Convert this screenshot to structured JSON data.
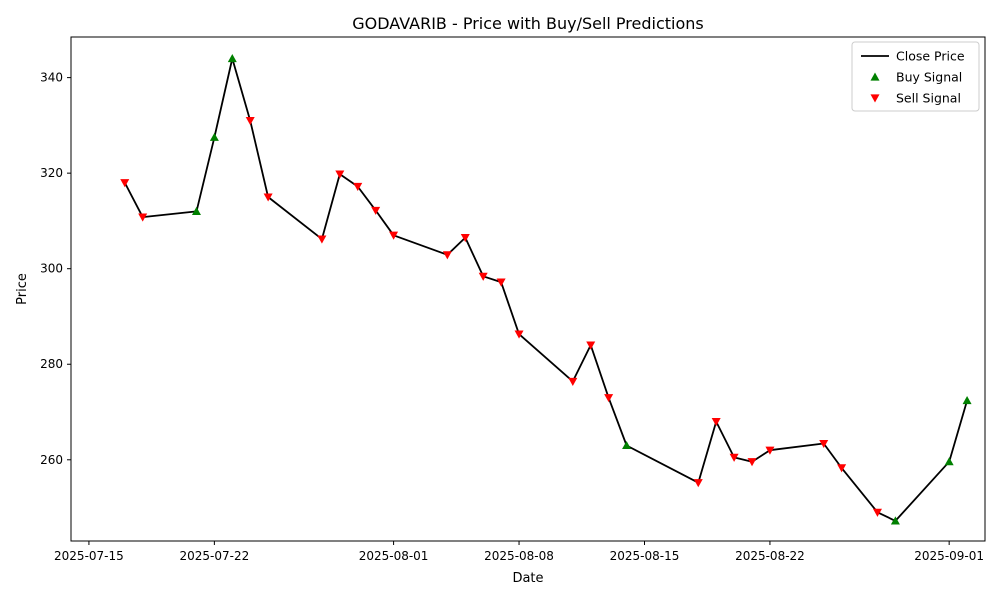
{
  "chart_data": {
    "type": "line",
    "title": "GODAVARIB - Price with Buy/Sell Predictions",
    "xlabel": "Date",
    "ylabel": "Price",
    "x_ticks": [
      "2025-07-15",
      "2025-07-22",
      "2025-08-01",
      "2025-08-08",
      "2025-08-15",
      "2025-08-22",
      "2025-09-01"
    ],
    "y_ticks": [
      260,
      280,
      300,
      320,
      340
    ],
    "xlim": [
      "2025-07-14",
      "2025-09-03"
    ],
    "ylim": [
      243,
      348.5
    ],
    "grid": false,
    "legend_position": "top-right",
    "series": [
      {
        "name": "Close Price",
        "kind": "line",
        "color": "#000000",
        "points": [
          {
            "x": "2025-07-17",
            "y": 318.0
          },
          {
            "x": "2025-07-18",
            "y": 310.8
          },
          {
            "x": "2025-07-21",
            "y": 312.0
          },
          {
            "x": "2025-07-22",
            "y": 327.5
          },
          {
            "x": "2025-07-23",
            "y": 344.0
          },
          {
            "x": "2025-07-24",
            "y": 331.0
          },
          {
            "x": "2025-07-25",
            "y": 315.0
          },
          {
            "x": "2025-07-28",
            "y": 306.2
          },
          {
            "x": "2025-07-29",
            "y": 319.8
          },
          {
            "x": "2025-07-30",
            "y": 317.2
          },
          {
            "x": "2025-07-31",
            "y": 312.2
          },
          {
            "x": "2025-08-01",
            "y": 307.0
          },
          {
            "x": "2025-08-04",
            "y": 302.9
          },
          {
            "x": "2025-08-05",
            "y": 306.5
          },
          {
            "x": "2025-08-06",
            "y": 298.4
          },
          {
            "x": "2025-08-07",
            "y": 297.2
          },
          {
            "x": "2025-08-08",
            "y": 286.3
          },
          {
            "x": "2025-08-11",
            "y": 276.4
          },
          {
            "x": "2025-08-12",
            "y": 284.0
          },
          {
            "x": "2025-08-13",
            "y": 273.0
          },
          {
            "x": "2025-08-14",
            "y": 263.0
          },
          {
            "x": "2025-08-18",
            "y": 255.2
          },
          {
            "x": "2025-08-19",
            "y": 268.0
          },
          {
            "x": "2025-08-20",
            "y": 260.5
          },
          {
            "x": "2025-08-21",
            "y": 259.6
          },
          {
            "x": "2025-08-22",
            "y": 262.0
          },
          {
            "x": "2025-08-25",
            "y": 263.4
          },
          {
            "x": "2025-08-26",
            "y": 258.3
          },
          {
            "x": "2025-08-28",
            "y": 249.0
          },
          {
            "x": "2025-08-29",
            "y": 247.2
          },
          {
            "x": "2025-09-01",
            "y": 259.6
          },
          {
            "x": "2025-09-02",
            "y": 272.4
          }
        ]
      },
      {
        "name": "Buy Signal",
        "kind": "marker-up",
        "color": "#008000",
        "points": [
          {
            "x": "2025-07-21",
            "y": 312.0
          },
          {
            "x": "2025-07-22",
            "y": 327.5
          },
          {
            "x": "2025-07-23",
            "y": 344.0
          },
          {
            "x": "2025-08-14",
            "y": 263.0
          },
          {
            "x": "2025-08-29",
            "y": 247.2
          },
          {
            "x": "2025-09-01",
            "y": 259.6
          },
          {
            "x": "2025-09-02",
            "y": 272.4
          }
        ]
      },
      {
        "name": "Sell Signal",
        "kind": "marker-down",
        "color": "#ff0000",
        "points": [
          {
            "x": "2025-07-17",
            "y": 318.0
          },
          {
            "x": "2025-07-18",
            "y": 310.8
          },
          {
            "x": "2025-07-24",
            "y": 331.0
          },
          {
            "x": "2025-07-25",
            "y": 315.0
          },
          {
            "x": "2025-07-28",
            "y": 306.2
          },
          {
            "x": "2025-07-29",
            "y": 319.8
          },
          {
            "x": "2025-07-30",
            "y": 317.2
          },
          {
            "x": "2025-07-31",
            "y": 312.2
          },
          {
            "x": "2025-08-01",
            "y": 307.0
          },
          {
            "x": "2025-08-04",
            "y": 302.9
          },
          {
            "x": "2025-08-05",
            "y": 306.5
          },
          {
            "x": "2025-08-06",
            "y": 298.4
          },
          {
            "x": "2025-08-07",
            "y": 297.2
          },
          {
            "x": "2025-08-08",
            "y": 286.3
          },
          {
            "x": "2025-08-11",
            "y": 276.4
          },
          {
            "x": "2025-08-12",
            "y": 284.0
          },
          {
            "x": "2025-08-13",
            "y": 273.0
          },
          {
            "x": "2025-08-18",
            "y": 255.2
          },
          {
            "x": "2025-08-19",
            "y": 268.0
          },
          {
            "x": "2025-08-20",
            "y": 260.5
          },
          {
            "x": "2025-08-21",
            "y": 259.6
          },
          {
            "x": "2025-08-22",
            "y": 262.0
          },
          {
            "x": "2025-08-25",
            "y": 263.4
          },
          {
            "x": "2025-08-26",
            "y": 258.3
          },
          {
            "x": "2025-08-28",
            "y": 249.0
          }
        ]
      }
    ]
  }
}
